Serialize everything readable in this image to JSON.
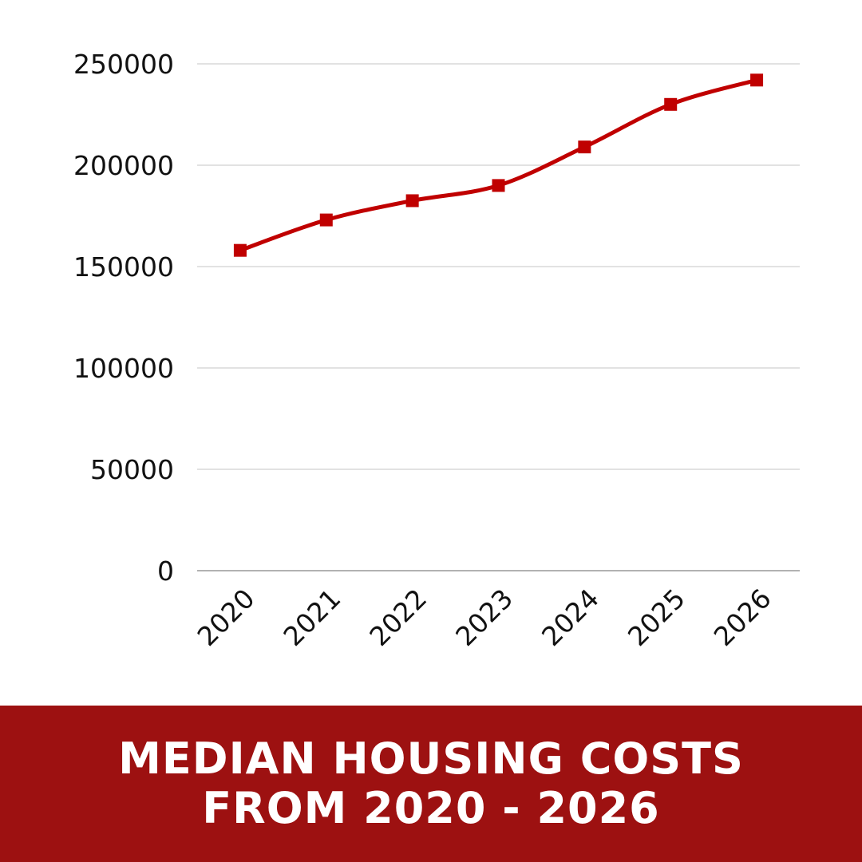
{
  "chart_data": {
    "type": "line",
    "title_lines": [
      "MEDIAN HOUSING COSTS",
      "FROM 2020 - 2026"
    ],
    "categories": [
      "2020",
      "2021",
      "2022",
      "2023",
      "2024",
      "2025",
      "2026"
    ],
    "series": [
      {
        "name": "Median housing cost",
        "values": [
          158000,
          173000,
          182500,
          190000,
          209000,
          230000,
          242000
        ]
      }
    ],
    "y_ticks": [
      0,
      50000,
      100000,
      150000,
      200000,
      250000
    ],
    "ylim": [
      0,
      250000
    ],
    "grid": true,
    "legend": "none",
    "marker": "square",
    "smooth": true
  },
  "colors": {
    "series": "#c00000",
    "grid": "#d0d0d0",
    "axis": "#999999",
    "banner": "#9d1111",
    "banner_text": "#ffffff"
  }
}
